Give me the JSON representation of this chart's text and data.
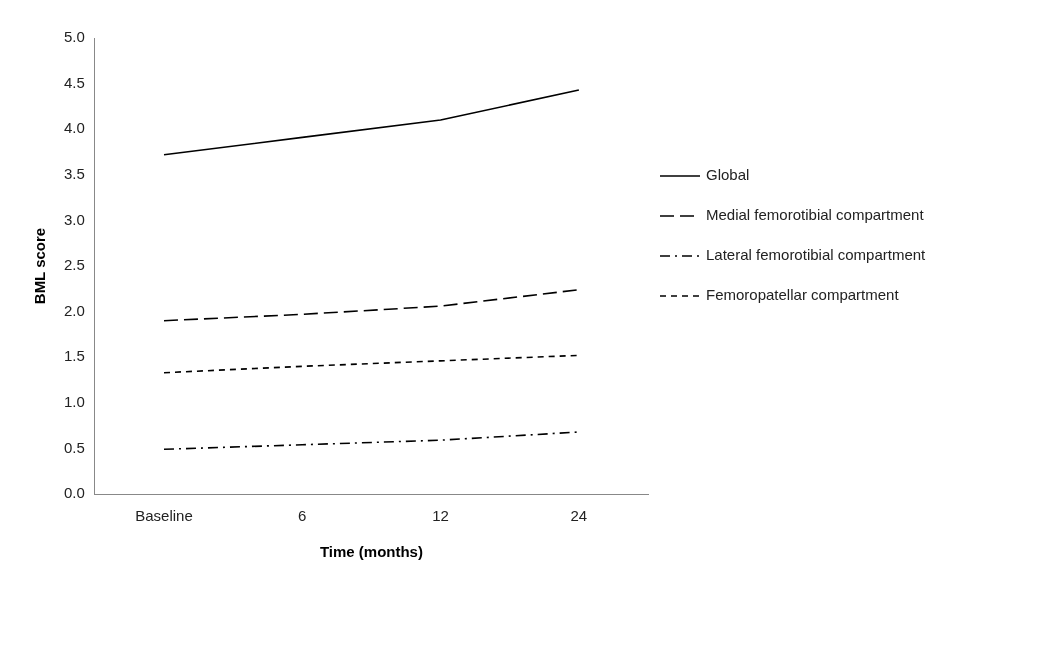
{
  "chart_data": {
    "type": "line",
    "xlabel": "Time (months)",
    "ylabel": "BML score",
    "categories": [
      "Baseline",
      "6",
      "12",
      "24"
    ],
    "ylim": [
      0,
      5
    ],
    "yticks": [
      {
        "value": 0,
        "label": "0.0"
      },
      {
        "value": 0.5,
        "label": "0.5"
      },
      {
        "value": 1,
        "label": "1.0"
      },
      {
        "value": 1.5,
        "label": "1.5"
      },
      {
        "value": 2,
        "label": "2.0"
      },
      {
        "value": 2.5,
        "label": "2.5"
      },
      {
        "value": 3,
        "label": "3.0"
      },
      {
        "value": 3.5,
        "label": "3.5"
      },
      {
        "value": 4,
        "label": "4.0"
      },
      {
        "value": 4.5,
        "label": "4.5"
      },
      {
        "value": 5,
        "label": "5.0"
      }
    ],
    "grid": false,
    "legend": "right",
    "marker": "none",
    "series": [
      {
        "name": "Global",
        "color": "#000000",
        "line_style": "solid",
        "values": [
          3.72,
          3.91,
          4.1,
          4.43
        ]
      },
      {
        "name": "Medial femorotibial compartment",
        "color": "#000000",
        "line_style": "dashed",
        "values": [
          1.9,
          1.97,
          2.06,
          2.24
        ]
      },
      {
        "name": "Lateral femorotibial compartment",
        "color": "#000000",
        "line_style": "dashdot",
        "values": [
          0.49,
          0.54,
          0.59,
          0.68
        ]
      },
      {
        "name": "Femoropatellar compartment",
        "color": "#000000",
        "line_style": "dotted",
        "values": [
          1.33,
          1.4,
          1.46,
          1.52
        ]
      }
    ]
  }
}
